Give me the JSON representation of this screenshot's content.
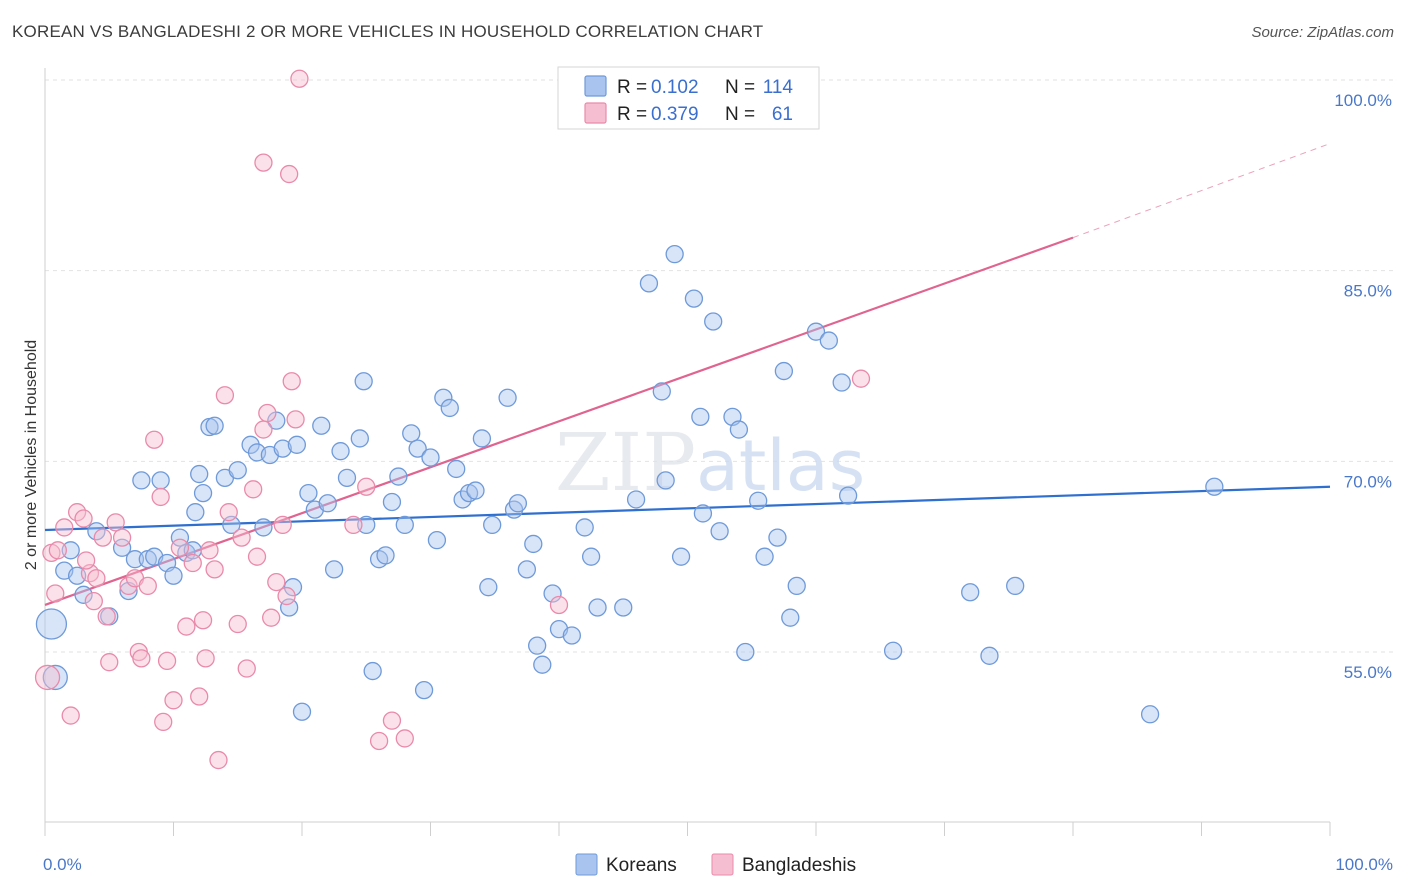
{
  "title": "KOREAN VS BANGLADESHI 2 OR MORE VEHICLES IN HOUSEHOLD CORRELATION CHART",
  "source": "Source: ZipAtlas.com",
  "watermark": "ZIPatlas",
  "colors": {
    "korean_fill": "#a9c4ee",
    "korean_stroke": "#6f9ad9",
    "korean_line": "#2f6fce",
    "bangladeshi_fill": "#f6bfd1",
    "bangladeshi_stroke": "#e98aab",
    "bangladeshi_line": "#e0648f"
  },
  "legend": {
    "r_label": "R =",
    "n_label": "N =",
    "rows": [
      {
        "series": "Koreans",
        "r": "0.102",
        "n": "114"
      },
      {
        "series": "Bangladeshis",
        "r": "0.379",
        "n": "61"
      }
    ]
  },
  "chart_data": {
    "type": "scatter",
    "xlabel": "",
    "ylabel": "2 or more Vehicles in Household",
    "xlim": [
      0,
      100
    ],
    "ylim": [
      40,
      102
    ],
    "x_tick_labels": [
      "0.0%",
      "100.0%"
    ],
    "y_ticks": [
      55,
      70,
      85,
      100
    ],
    "y_tick_labels": [
      "55.0%",
      "70.0%",
      "85.0%",
      "100.0%"
    ],
    "grid": "horizontal dashed",
    "legend_position": "top-center",
    "series": [
      {
        "name": "Koreans",
        "trendline": {
          "x": [
            0,
            100
          ],
          "y": [
            64.6,
            68.0
          ]
        },
        "points": [
          [
            0.5,
            57.2,
            3
          ],
          [
            0.8,
            53.0,
            2
          ],
          [
            1.5,
            61.4,
            1
          ],
          [
            2.0,
            63.0,
            1
          ],
          [
            2.5,
            61.0,
            1
          ],
          [
            3.0,
            59.5,
            1
          ],
          [
            4.0,
            64.5,
            1
          ],
          [
            5.0,
            57.8,
            1
          ],
          [
            6.0,
            63.2,
            1
          ],
          [
            6.5,
            59.8,
            1
          ],
          [
            7.0,
            62.3,
            1
          ],
          [
            7.5,
            68.5,
            1
          ],
          [
            8.0,
            62.3,
            1
          ],
          [
            8.5,
            62.5,
            1
          ],
          [
            9.0,
            68.5,
            1
          ],
          [
            9.5,
            62.0,
            1
          ],
          [
            10.0,
            61.0,
            1
          ],
          [
            10.5,
            64.0,
            1
          ],
          [
            11.0,
            62.8,
            1
          ],
          [
            11.5,
            63.0,
            1
          ],
          [
            11.7,
            66.0,
            1
          ],
          [
            12.0,
            69.0,
            1
          ],
          [
            12.3,
            67.5,
            1
          ],
          [
            12.8,
            72.7,
            1
          ],
          [
            13.2,
            72.8,
            1
          ],
          [
            14.0,
            68.7,
            1
          ],
          [
            14.5,
            65.0,
            1
          ],
          [
            15.0,
            69.3,
            1
          ],
          [
            16.0,
            71.3,
            1
          ],
          [
            16.5,
            70.7,
            1
          ],
          [
            17.0,
            64.8,
            1
          ],
          [
            17.5,
            70.5,
            1
          ],
          [
            18.0,
            73.2,
            1
          ],
          [
            18.5,
            71.0,
            1
          ],
          [
            19.0,
            58.5,
            1
          ],
          [
            19.3,
            60.1,
            1
          ],
          [
            19.6,
            71.3,
            1
          ],
          [
            20.0,
            50.3,
            1
          ],
          [
            20.5,
            67.5,
            1
          ],
          [
            21.0,
            66.2,
            1
          ],
          [
            21.5,
            72.8,
            1
          ],
          [
            22.0,
            66.7,
            1
          ],
          [
            22.5,
            61.5,
            1
          ],
          [
            23.0,
            70.8,
            1
          ],
          [
            23.5,
            68.7,
            1
          ],
          [
            24.5,
            71.8,
            1
          ],
          [
            24.8,
            76.3,
            1
          ],
          [
            25.0,
            65.0,
            1
          ],
          [
            25.5,
            53.5,
            1
          ],
          [
            26.0,
            62.3,
            1
          ],
          [
            26.5,
            62.6,
            1
          ],
          [
            27.0,
            66.8,
            1
          ],
          [
            27.5,
            68.8,
            1
          ],
          [
            28.0,
            65.0,
            1
          ],
          [
            28.5,
            72.2,
            1
          ],
          [
            29.0,
            71.0,
            1
          ],
          [
            29.5,
            52.0,
            1
          ],
          [
            30.0,
            70.3,
            1
          ],
          [
            30.5,
            63.8,
            1
          ],
          [
            31.0,
            75.0,
            1
          ],
          [
            31.5,
            74.2,
            1
          ],
          [
            32.0,
            69.4,
            1
          ],
          [
            32.5,
            67.0,
            1
          ],
          [
            33.0,
            67.5,
            1
          ],
          [
            33.5,
            67.7,
            1
          ],
          [
            34.0,
            71.8,
            1
          ],
          [
            34.5,
            60.1,
            1
          ],
          [
            34.8,
            65.0,
            1
          ],
          [
            36.0,
            75.0,
            1
          ],
          [
            36.5,
            66.2,
            1
          ],
          [
            36.8,
            66.7,
            1
          ],
          [
            37.5,
            61.5,
            1
          ],
          [
            38.0,
            63.5,
            1
          ],
          [
            38.3,
            55.5,
            1
          ],
          [
            38.7,
            54.0,
            1
          ],
          [
            39.5,
            59.6,
            1
          ],
          [
            40.0,
            56.8,
            1
          ],
          [
            41.0,
            56.3,
            1
          ],
          [
            42.0,
            64.8,
            1
          ],
          [
            42.5,
            62.5,
            1
          ],
          [
            43.0,
            58.5,
            1
          ],
          [
            45.0,
            58.5,
            1
          ],
          [
            46.0,
            67.0,
            1
          ],
          [
            47.0,
            84.0,
            1
          ],
          [
            48.0,
            75.5,
            1
          ],
          [
            48.3,
            68.5,
            1
          ],
          [
            49.0,
            86.3,
            1
          ],
          [
            49.5,
            62.5,
            1
          ],
          [
            50.5,
            82.8,
            1
          ],
          [
            51.0,
            73.5,
            1
          ],
          [
            51.2,
            65.9,
            1
          ],
          [
            52.0,
            81.0,
            1
          ],
          [
            52.5,
            64.5,
            1
          ],
          [
            53.5,
            73.5,
            1
          ],
          [
            54.0,
            72.5,
            1
          ],
          [
            54.5,
            55.0,
            1
          ],
          [
            55.5,
            66.9,
            1
          ],
          [
            56.0,
            62.5,
            1
          ],
          [
            57.0,
            64.0,
            1
          ],
          [
            57.5,
            77.1,
            1
          ],
          [
            58.0,
            57.7,
            1
          ],
          [
            58.5,
            60.2,
            1
          ],
          [
            60.0,
            80.2,
            1
          ],
          [
            61.0,
            79.5,
            1
          ],
          [
            62.0,
            76.2,
            1
          ],
          [
            62.5,
            67.3,
            1
          ],
          [
            66.0,
            55.1,
            1
          ],
          [
            72.0,
            59.7,
            1
          ],
          [
            73.5,
            54.7,
            1
          ],
          [
            75.5,
            60.2,
            1
          ],
          [
            86.0,
            50.1,
            1
          ],
          [
            91.0,
            68.0,
            1
          ]
        ]
      },
      {
        "name": "Bangladeshis",
        "trendline": {
          "x": [
            0,
            80
          ],
          "y": [
            58.7,
            87.6
          ],
          "dashed_to": {
            "x": 100,
            "y": 95.0
          }
        },
        "points": [
          [
            0.2,
            53.0,
            2
          ],
          [
            0.5,
            62.8,
            1
          ],
          [
            0.8,
            59.6,
            1
          ],
          [
            1.0,
            63.0,
            1
          ],
          [
            1.5,
            64.8,
            1
          ],
          [
            2.0,
            50.0,
            1
          ],
          [
            2.5,
            66.0,
            1
          ],
          [
            3.0,
            65.5,
            1
          ],
          [
            3.5,
            61.2,
            1
          ],
          [
            3.8,
            59.0,
            1
          ],
          [
            4.0,
            60.8,
            1
          ],
          [
            4.5,
            64.0,
            1
          ],
          [
            4.8,
            57.8,
            1
          ],
          [
            5.0,
            54.2,
            1
          ],
          [
            5.5,
            65.2,
            1
          ],
          [
            6.0,
            64.0,
            1
          ],
          [
            6.5,
            60.2,
            1
          ],
          [
            7.0,
            60.8,
            1
          ],
          [
            7.3,
            55.0,
            1
          ],
          [
            7.5,
            54.5,
            1
          ],
          [
            8.0,
            60.2,
            1
          ],
          [
            8.5,
            71.7,
            1
          ],
          [
            9.0,
            67.2,
            1
          ],
          [
            9.2,
            49.5,
            1
          ],
          [
            9.5,
            54.3,
            1
          ],
          [
            10.0,
            51.2,
            1
          ],
          [
            10.5,
            63.2,
            1
          ],
          [
            11.0,
            57.0,
            1
          ],
          [
            11.5,
            62.0,
            1
          ],
          [
            12.0,
            51.5,
            1
          ],
          [
            12.3,
            57.5,
            1
          ],
          [
            12.5,
            54.5,
            1
          ],
          [
            12.8,
            63.0,
            1
          ],
          [
            13.2,
            61.5,
            1
          ],
          [
            13.5,
            46.5,
            1
          ],
          [
            14.0,
            75.2,
            1
          ],
          [
            14.3,
            66.0,
            1
          ],
          [
            15.0,
            57.2,
            1
          ],
          [
            15.3,
            64.0,
            1
          ],
          [
            15.7,
            53.7,
            1
          ],
          [
            16.2,
            67.8,
            1
          ],
          [
            16.5,
            62.5,
            1
          ],
          [
            17.0,
            72.5,
            1
          ],
          [
            17.3,
            73.8,
            1
          ],
          [
            17.6,
            57.7,
            1
          ],
          [
            18.0,
            60.5,
            1
          ],
          [
            18.5,
            65.0,
            1
          ],
          [
            18.8,
            59.4,
            1
          ],
          [
            19.2,
            76.3,
            1
          ],
          [
            19.5,
            73.3,
            1
          ],
          [
            19.0,
            92.6,
            1
          ],
          [
            19.8,
            100.1,
            1
          ],
          [
            17.0,
            93.5,
            1
          ],
          [
            24.0,
            65.0,
            1
          ],
          [
            25.0,
            68.0,
            1
          ],
          [
            26.0,
            48.0,
            1
          ],
          [
            27.0,
            49.6,
            1
          ],
          [
            28.0,
            48.2,
            1
          ],
          [
            40.0,
            58.7,
            1
          ],
          [
            63.5,
            76.5,
            1
          ],
          [
            3.2,
            62.2,
            1
          ]
        ]
      }
    ]
  },
  "bottom_legend": [
    "Koreans",
    "Bangladeshis"
  ]
}
